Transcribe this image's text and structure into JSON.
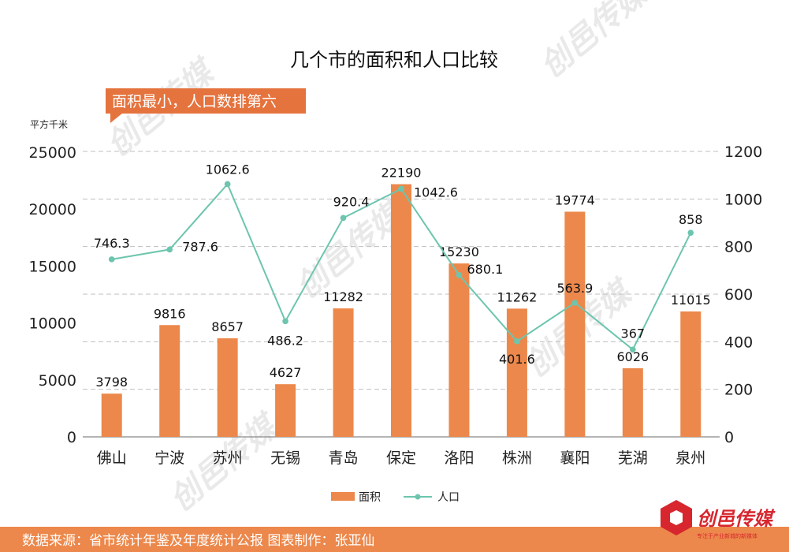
{
  "chart_data": {
    "type": "bar",
    "title": "几个市的面积和人口比较",
    "categories": [
      "佛山",
      "宁波",
      "苏州",
      "无锡",
      "青岛",
      "保定",
      "洛阳",
      "株洲",
      "襄阳",
      "芜湖",
      "泉州"
    ],
    "series": [
      {
        "name": "面积",
        "type": "bar",
        "axis": "left",
        "color": "#ec884b",
        "values": [
          3798,
          9816,
          8657,
          4627,
          11282,
          22190,
          15230,
          11262,
          19774,
          6026,
          11015
        ],
        "labels": [
          "3798",
          "9816",
          "8657",
          "4627",
          "11282",
          "22190",
          "15230",
          "11262",
          "19774",
          "6026",
          "11015"
        ]
      },
      {
        "name": "人口",
        "type": "line",
        "axis": "right",
        "color": "#6dc5ae",
        "values": [
          746.3,
          787.6,
          1062.6,
          486.2,
          920.4,
          1042.6,
          680.1,
          401.6,
          563.9,
          367,
          858
        ],
        "labels": [
          "746.3",
          "787.6",
          "1062.6",
          "486.2",
          "920.4",
          "1042.6",
          "680.1",
          "401.6",
          "563.9",
          "367",
          "858"
        ]
      }
    ],
    "y_left": {
      "label": "平方千米",
      "ylim": [
        0,
        25000
      ],
      "ticks": [
        "0",
        "5000",
        "10000",
        "15000",
        "20000",
        "25000"
      ]
    },
    "y_right": {
      "label": "",
      "ylim": [
        0,
        1200
      ],
      "ticks": [
        "0",
        "200",
        "400",
        "600",
        "800",
        "1000",
        "1200"
      ]
    },
    "grid": true,
    "legend": "bottom",
    "annotation": "面积最小，人口数排第六",
    "footer": "数据来源：省市统计年鉴及年度统计公报  图表制作：张亚仙"
  },
  "watermark": {
    "brand": "创邑传媒",
    "slogan": "专注于产业新城的新媒体"
  },
  "colors": {
    "bar": "#ec884b",
    "line": "#6dc5ae",
    "callout": "#e5733e",
    "footer_bg": "#ec884b",
    "grid": "#bfbfbf",
    "watermark": "#e8e8e8",
    "logo_red": "#d7262e"
  }
}
